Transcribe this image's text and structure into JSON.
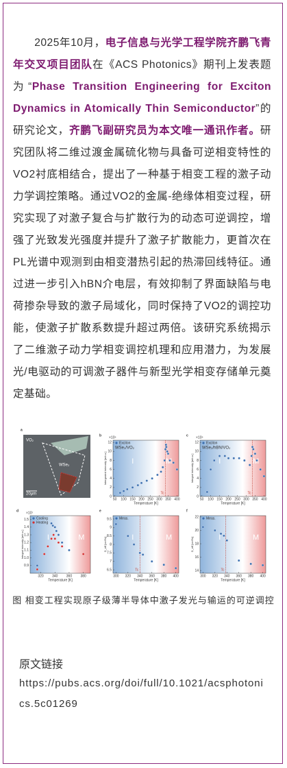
{
  "article": {
    "segments": [
      {
        "text": "2025年10月，",
        "bold": false
      },
      {
        "text": "电子信息与光学工程学院齐鹏飞青年交叉项目团队",
        "bold": true
      },
      {
        "text": "在《ACS Photonics》期刊上发表题为“",
        "bold": false
      },
      {
        "text": "Phase Transition Engineering for Exciton Dynamics in Atomically Thin Semiconductor",
        "bold": true
      },
      {
        "text": "”的研究论文，",
        "bold": false
      },
      {
        "text": "齐鹏飞副研究员为本文唯一通讯作者。",
        "bold": true
      },
      {
        "text": "研究团队将二维过渡金属硫化物与具备可逆相变特性的VO2衬底相结合，提出了一种基于相变工程的激子动力学调控策略。通过VO2的金属-绝缘体相变过程，研究实现了对激子复合与扩散行为的动态可逆调控，增强了光致发光强度并提升了激子扩散能力，更首次在PL光谱中观测到由相变潜热引起的热滞回线特征。通过进一步引入hBN介电层，有效抑制了界面缺陷与电荷掺杂导致的激子局域化，同时保持了VO2的调控功能，使激子扩散系数提升超过两倍。该研究系统揭示了二维激子动力学相变调控机理和应用潜力，为发展光/电驱动的可调激子器件与新型光学相变存储单元奠定基础。",
        "bold": false
      }
    ]
  },
  "figure": {
    "caption": "图 相变工程实现原子级薄半导体中激子发光与输运的可逆调控",
    "panels": [
      {
        "letter": "a",
        "type": "image",
        "labels": [
          "VO₂",
          "WSe₂",
          "20μm"
        ]
      },
      {
        "letter": "b",
        "type": "scatter",
        "xlabel": "Temperature [K]",
        "ylabel": "Intergrated intensity [arb.u.]",
        "multiplier": "×10⁵",
        "inset": "WSe₂/VO₂",
        "phases": [
          "I",
          "M"
        ],
        "tc": {
          "value": 335,
          "label": "Tc"
        },
        "xlim": [
          40,
          410
        ],
        "ylim": [
          0,
          12.5
        ],
        "xticks": [
          50,
          100,
          150,
          200,
          250,
          300,
          350,
          400
        ],
        "yticks": [
          0,
          2,
          4,
          6,
          8,
          10,
          12
        ],
        "series": [
          {
            "name": "Exciton",
            "color": "#3b6fb0",
            "x": [
              80,
              100,
              120,
              150,
              180,
              200,
              230,
              260,
              290,
              310,
              320,
              330,
              335,
              338,
              340,
              345,
              350,
              360,
              380,
              400
            ],
            "y": [
              0.8,
              1.2,
              1.6,
              2,
              2.5,
              3,
              3.5,
              4,
              4.8,
              5.5,
              6.5,
              8,
              10.5,
              11.5,
              11,
              10,
              9.5,
              8,
              7.5,
              6
            ]
          }
        ]
      },
      {
        "letter": "c",
        "type": "scatter",
        "xlabel": "Temperature [K]",
        "ylabel": "Integral intensity [arb.u.]",
        "multiplier": "×10⁵",
        "inset": "WSe₂/hBN/VO₂",
        "phases": [
          "I",
          "M"
        ],
        "tc": {
          "value": 335,
          "label": "Tc"
        },
        "xlim": [
          40,
          410
        ],
        "ylim": [
          0,
          12.5
        ],
        "xticks": [
          50,
          100,
          150,
          200,
          250,
          300,
          350,
          400
        ],
        "yticks": [
          0,
          2,
          4,
          6,
          8,
          10,
          12
        ],
        "series": [
          {
            "name": "Exciton",
            "color": "#3b6fb0",
            "x": [
              80,
              100,
              120,
              150,
              180,
              200,
              230,
              260,
              290,
              320,
              330,
              335,
              340,
              350,
              360,
              380,
              400
            ],
            "y": [
              1,
              6,
              8,
              9,
              9,
              8.5,
              8.5,
              8.5,
              8,
              7,
              9,
              11,
              10.5,
              9.5,
              8,
              6,
              4.5
            ]
          }
        ]
      },
      {
        "letter": "d",
        "type": "scatter",
        "xlabel": "Temperature [K]",
        "ylabel": "Integral intensity [arb.u.]",
        "multiplier": "×10⁷",
        "phases": [
          "I",
          "M"
        ],
        "xlim": [
          305,
          390
        ],
        "ylim": [
          0.8,
          1.55
        ],
        "xticks": [
          320,
          340,
          360,
          380
        ],
        "yticks": [
          0.9,
          {
            "value": 1,
            "label": "1.0"
          },
          1.1,
          1.2,
          1.3,
          1.4,
          1.5
        ],
        "series": [
          {
            "name": "Cooling",
            "color": "#3b6fb0",
            "x": [
              315,
              335,
              337,
              340,
              342,
              345,
              350,
              360
            ],
            "y": [
              0.9,
              1.45,
              1.42,
              1.4,
              1.35,
              1.3,
              1.2,
              1.1
            ]
          },
          {
            "name": "Heating",
            "color": "#d62f2f",
            "x": [
              315,
              325,
              330,
              335,
              338,
              340,
              345,
              350,
              380
            ],
            "y": [
              0.85,
              1.05,
              1.15,
              1.25,
              1.3,
              1.25,
              1.2,
              1.15,
              1.05
            ]
          }
        ]
      },
      {
        "letter": "e",
        "type": "scatter",
        "xlabel": "Temperature [K]",
        "ylabel": "D_eff [cm²/s]",
        "phases": [
          "I",
          "M"
        ],
        "tc": {
          "value": 340,
          "label": "Tc"
        },
        "xlim": [
          295,
          405
        ],
        "ylim": [
          6.3,
          9.7
        ],
        "xticks": [
          300,
          320,
          340,
          360,
          380,
          400
        ],
        "yticks": [
          6.5,
          7,
          7.5,
          8,
          8.5,
          9,
          9.5
        ],
        "series": [
          {
            "name": "Meas.",
            "color": "#3b6fb0",
            "x": [
              300,
              320,
              330,
              340,
              345,
              360,
              380,
              400
            ],
            "y": [
              9.2,
              8.5,
              8,
              7.5,
              7.4,
              7,
              6.8,
              6.6
            ]
          }
        ]
      },
      {
        "letter": "f",
        "type": "scatter",
        "xlabel": "Temperature [K]",
        "ylabel": "D_eff [cm²/s]",
        "phases": [
          "I",
          "M"
        ],
        "tc": {
          "value": 338,
          "label": "Tc"
        },
        "xlim": [
          295,
          405
        ],
        "ylim": [
          13.6,
          22.2
        ],
        "xticks": [
          300,
          320,
          340,
          360,
          380,
          400
        ],
        "yticks": [
          14,
          16,
          18,
          20,
          22
        ],
        "series": [
          {
            "name": "Meas.",
            "color": "#3b6fb0",
            "x": [
              300,
              320,
              330,
              335,
              340,
              360,
              380,
              400
            ],
            "y": [
              20.5,
              20,
              19.5,
              19.2,
              18.5,
              15.5,
              15,
              14.8
            ]
          }
        ]
      }
    ]
  },
  "link": {
    "label": "原文链接",
    "url": "https://pubs.acs.org/doi/full/10.1021/acsphotonics.5c01269"
  }
}
